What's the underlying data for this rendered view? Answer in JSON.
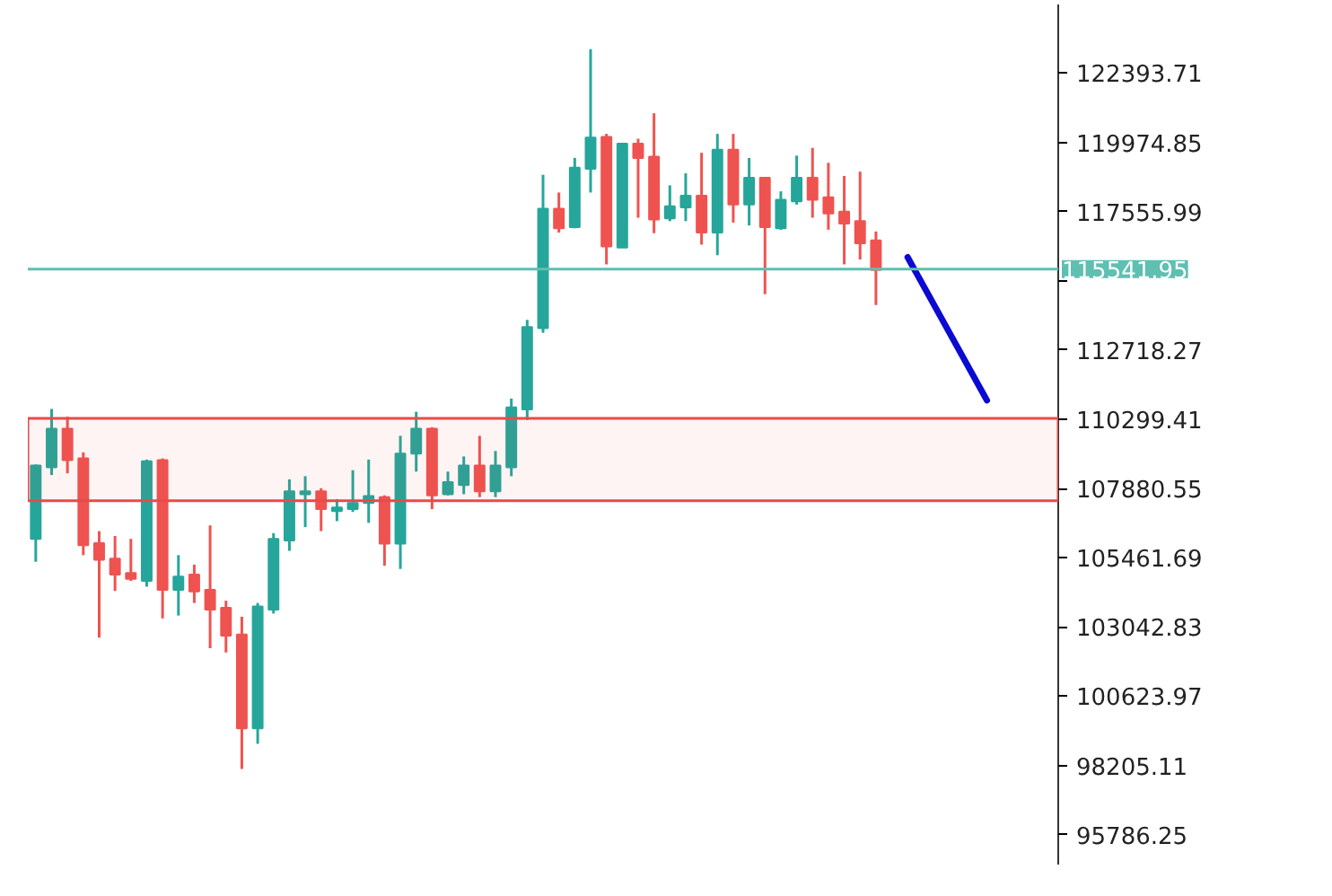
{
  "chart_data": {
    "type": "candlestick",
    "categories": [
      null,
      null,
      null,
      null,
      null,
      null,
      null,
      null,
      null,
      null,
      null,
      null,
      null,
      null,
      null,
      null,
      null,
      null,
      null,
      null,
      null,
      null,
      null,
      null,
      null,
      null,
      null,
      null,
      null,
      null,
      null,
      null,
      null,
      null,
      null,
      null,
      null,
      null,
      null,
      null,
      null,
      null,
      null,
      null,
      null,
      null,
      null,
      null,
      null,
      null,
      null,
      null,
      null,
      null,
      null,
      null,
      null,
      null,
      null,
      null,
      null,
      null,
      null,
      null,
      null
    ],
    "ohlc": [
      [
        106120,
        108720,
        105320,
        108680
      ],
      [
        108620,
        110660,
        108350,
        109970
      ],
      [
        109970,
        110390,
        108410,
        108870
      ],
      [
        108930,
        109140,
        105550,
        105900
      ],
      [
        105970,
        106390,
        102670,
        105390
      ],
      [
        105430,
        106220,
        104300,
        104870
      ],
      [
        104930,
        106120,
        104650,
        104720
      ],
      [
        104650,
        108890,
        104450,
        108830
      ],
      [
        108870,
        108930,
        103340,
        104340
      ],
      [
        104340,
        105550,
        103440,
        104800
      ],
      [
        104870,
        105220,
        103880,
        104280
      ],
      [
        104340,
        106590,
        102300,
        103650
      ],
      [
        103710,
        103960,
        102150,
        102740
      ],
      [
        102780,
        103400,
        98080,
        99500
      ],
      [
        99500,
        103880,
        98960,
        103760
      ],
      [
        103650,
        106320,
        103510,
        106120
      ],
      [
        106060,
        108200,
        105700,
        107780
      ],
      [
        107680,
        108310,
        106530,
        107780
      ],
      [
        107780,
        107890,
        106390,
        107160
      ],
      [
        107090,
        107510,
        106740,
        107220
      ],
      [
        107160,
        108520,
        107060,
        107370
      ],
      [
        107370,
        108890,
        106680,
        107620
      ],
      [
        107580,
        107640,
        105180,
        105950
      ],
      [
        105950,
        109720,
        105070,
        109100
      ],
      [
        109100,
        110560,
        108470,
        109970
      ],
      [
        109970,
        110020,
        107160,
        107640
      ],
      [
        107680,
        108470,
        107640,
        108100
      ],
      [
        108000,
        109000,
        107680,
        108680
      ],
      [
        108680,
        109720,
        107580,
        107780
      ],
      [
        107780,
        109190,
        107580,
        108680
      ],
      [
        108620,
        111020,
        108310,
        110710
      ],
      [
        110640,
        113770,
        110270,
        113520
      ],
      [
        113480,
        118840,
        113320,
        117650
      ],
      [
        117650,
        118220,
        116820,
        116970
      ],
      [
        117010,
        119430,
        116970,
        119090
      ],
      [
        119050,
        123230,
        118220,
        120140
      ],
      [
        120160,
        120270,
        115710,
        116340
      ],
      [
        116300,
        119930,
        116300,
        119930
      ],
      [
        119930,
        120100,
        117340,
        119430
      ],
      [
        119470,
        120990,
        116800,
        117280
      ],
      [
        117320,
        118470,
        117220,
        117740
      ],
      [
        117700,
        118890,
        117220,
        118110
      ],
      [
        118110,
        119610,
        116400,
        116820
      ],
      [
        116820,
        120270,
        116030,
        119720
      ],
      [
        119720,
        120270,
        117170,
        117800
      ],
      [
        117800,
        119430,
        117070,
        118740
      ],
      [
        118740,
        118740,
        114670,
        117010
      ],
      [
        116970,
        118260,
        116920,
        117970
      ],
      [
        117910,
        119510,
        117800,
        118740
      ],
      [
        118740,
        119780,
        117340,
        117970
      ],
      [
        118050,
        119260,
        116920,
        117490
      ],
      [
        117550,
        118800,
        115710,
        117140
      ],
      [
        117220,
        118950,
        115880,
        116450
      ],
      [
        116550,
        116860,
        114290,
        115510
      ],
      null,
      null,
      null,
      null,
      null,
      null,
      null,
      null,
      null,
      null,
      null
    ],
    "colors": [
      "#26a69a",
      "#26a69a",
      "#ef5350",
      "#ef5350",
      "#ef5350",
      "#ef5350",
      "#ef5350",
      "#26a69a",
      "#ef5350",
      "#26a69a",
      "#ef5350",
      "#ef5350",
      "#ef5350",
      "#ef5350",
      "#26a69a",
      "#26a69a",
      "#26a69a",
      "#26a69a",
      "#ef5350",
      "#26a69a",
      "#26a69a",
      "#26a69a",
      "#ef5350",
      "#26a69a",
      "#26a69a",
      "#ef5350",
      "#26a69a",
      "#26a69a",
      "#ef5350",
      "#26a69a",
      "#26a69a",
      "#26a69a",
      "#26a69a",
      "#ef5350",
      "#26a69a",
      "#26a69a",
      "#ef5350",
      "#26a69a",
      "#ef5350",
      "#ef5350",
      "#26a69a",
      "#26a69a",
      "#ef5350",
      "#26a69a",
      "#ef5350",
      "#26a69a",
      "#ef5350",
      "#26a69a",
      "#26a69a",
      "#ef5350",
      "#ef5350",
      "#ef5350",
      "#ef5350",
      "#ef5350",
      null,
      null,
      null,
      null,
      null,
      null,
      null,
      null,
      null,
      null,
      null
    ],
    "series": [
      {
        "type": "line",
        "values": [
          null,
          null,
          null,
          null,
          null,
          null,
          null,
          null,
          null,
          null,
          null,
          null,
          null,
          null,
          null,
          null,
          null,
          null,
          null,
          null,
          null,
          null,
          null,
          null,
          null,
          null,
          null,
          null,
          null,
          null,
          null,
          null,
          null,
          null,
          null,
          null,
          null,
          null,
          null,
          null,
          null,
          null,
          null,
          null,
          null,
          null,
          null,
          null,
          null,
          null,
          null,
          null,
          null,
          null,
          null,
          115960,
          null,
          null,
          null,
          null,
          110960,
          null,
          null,
          null,
          null
        ],
        "color": "#0a0ad2"
      }
    ],
    "ylim": [
      94740,
      124790
    ],
    "yticks": [
      {
        "value": 122393.71,
        "label": "122393.71"
      },
      {
        "value": 119974.85,
        "label": "119974.85"
      },
      {
        "value": 117555.99,
        "label": "117555.99"
      },
      {
        "value": 115137.13,
        "label": null
      },
      {
        "value": 112718.27,
        "label": "112718.27"
      },
      {
        "value": 110299.41,
        "label": "110299.41"
      },
      {
        "value": 107880.55,
        "label": "107880.55"
      },
      {
        "value": 105461.69,
        "label": "105461.69"
      },
      {
        "value": 103042.83,
        "label": "103042.83"
      },
      {
        "value": 100623.97,
        "label": "100623.97"
      },
      {
        "value": 98205.11,
        "label": "98205.11"
      },
      {
        "value": 95786.25,
        "label": "95786.25"
      }
    ],
    "ref_lines": [
      {
        "axis": "y",
        "value": 115541.95,
        "label": "115541.95",
        "color": "#5fbfb0"
      }
    ],
    "bands": [
      {
        "axis": "y",
        "from": 107450,
        "to": 110330,
        "color": "#e84a4a"
      }
    ],
    "tick_labels": "y",
    "grid": false
  }
}
